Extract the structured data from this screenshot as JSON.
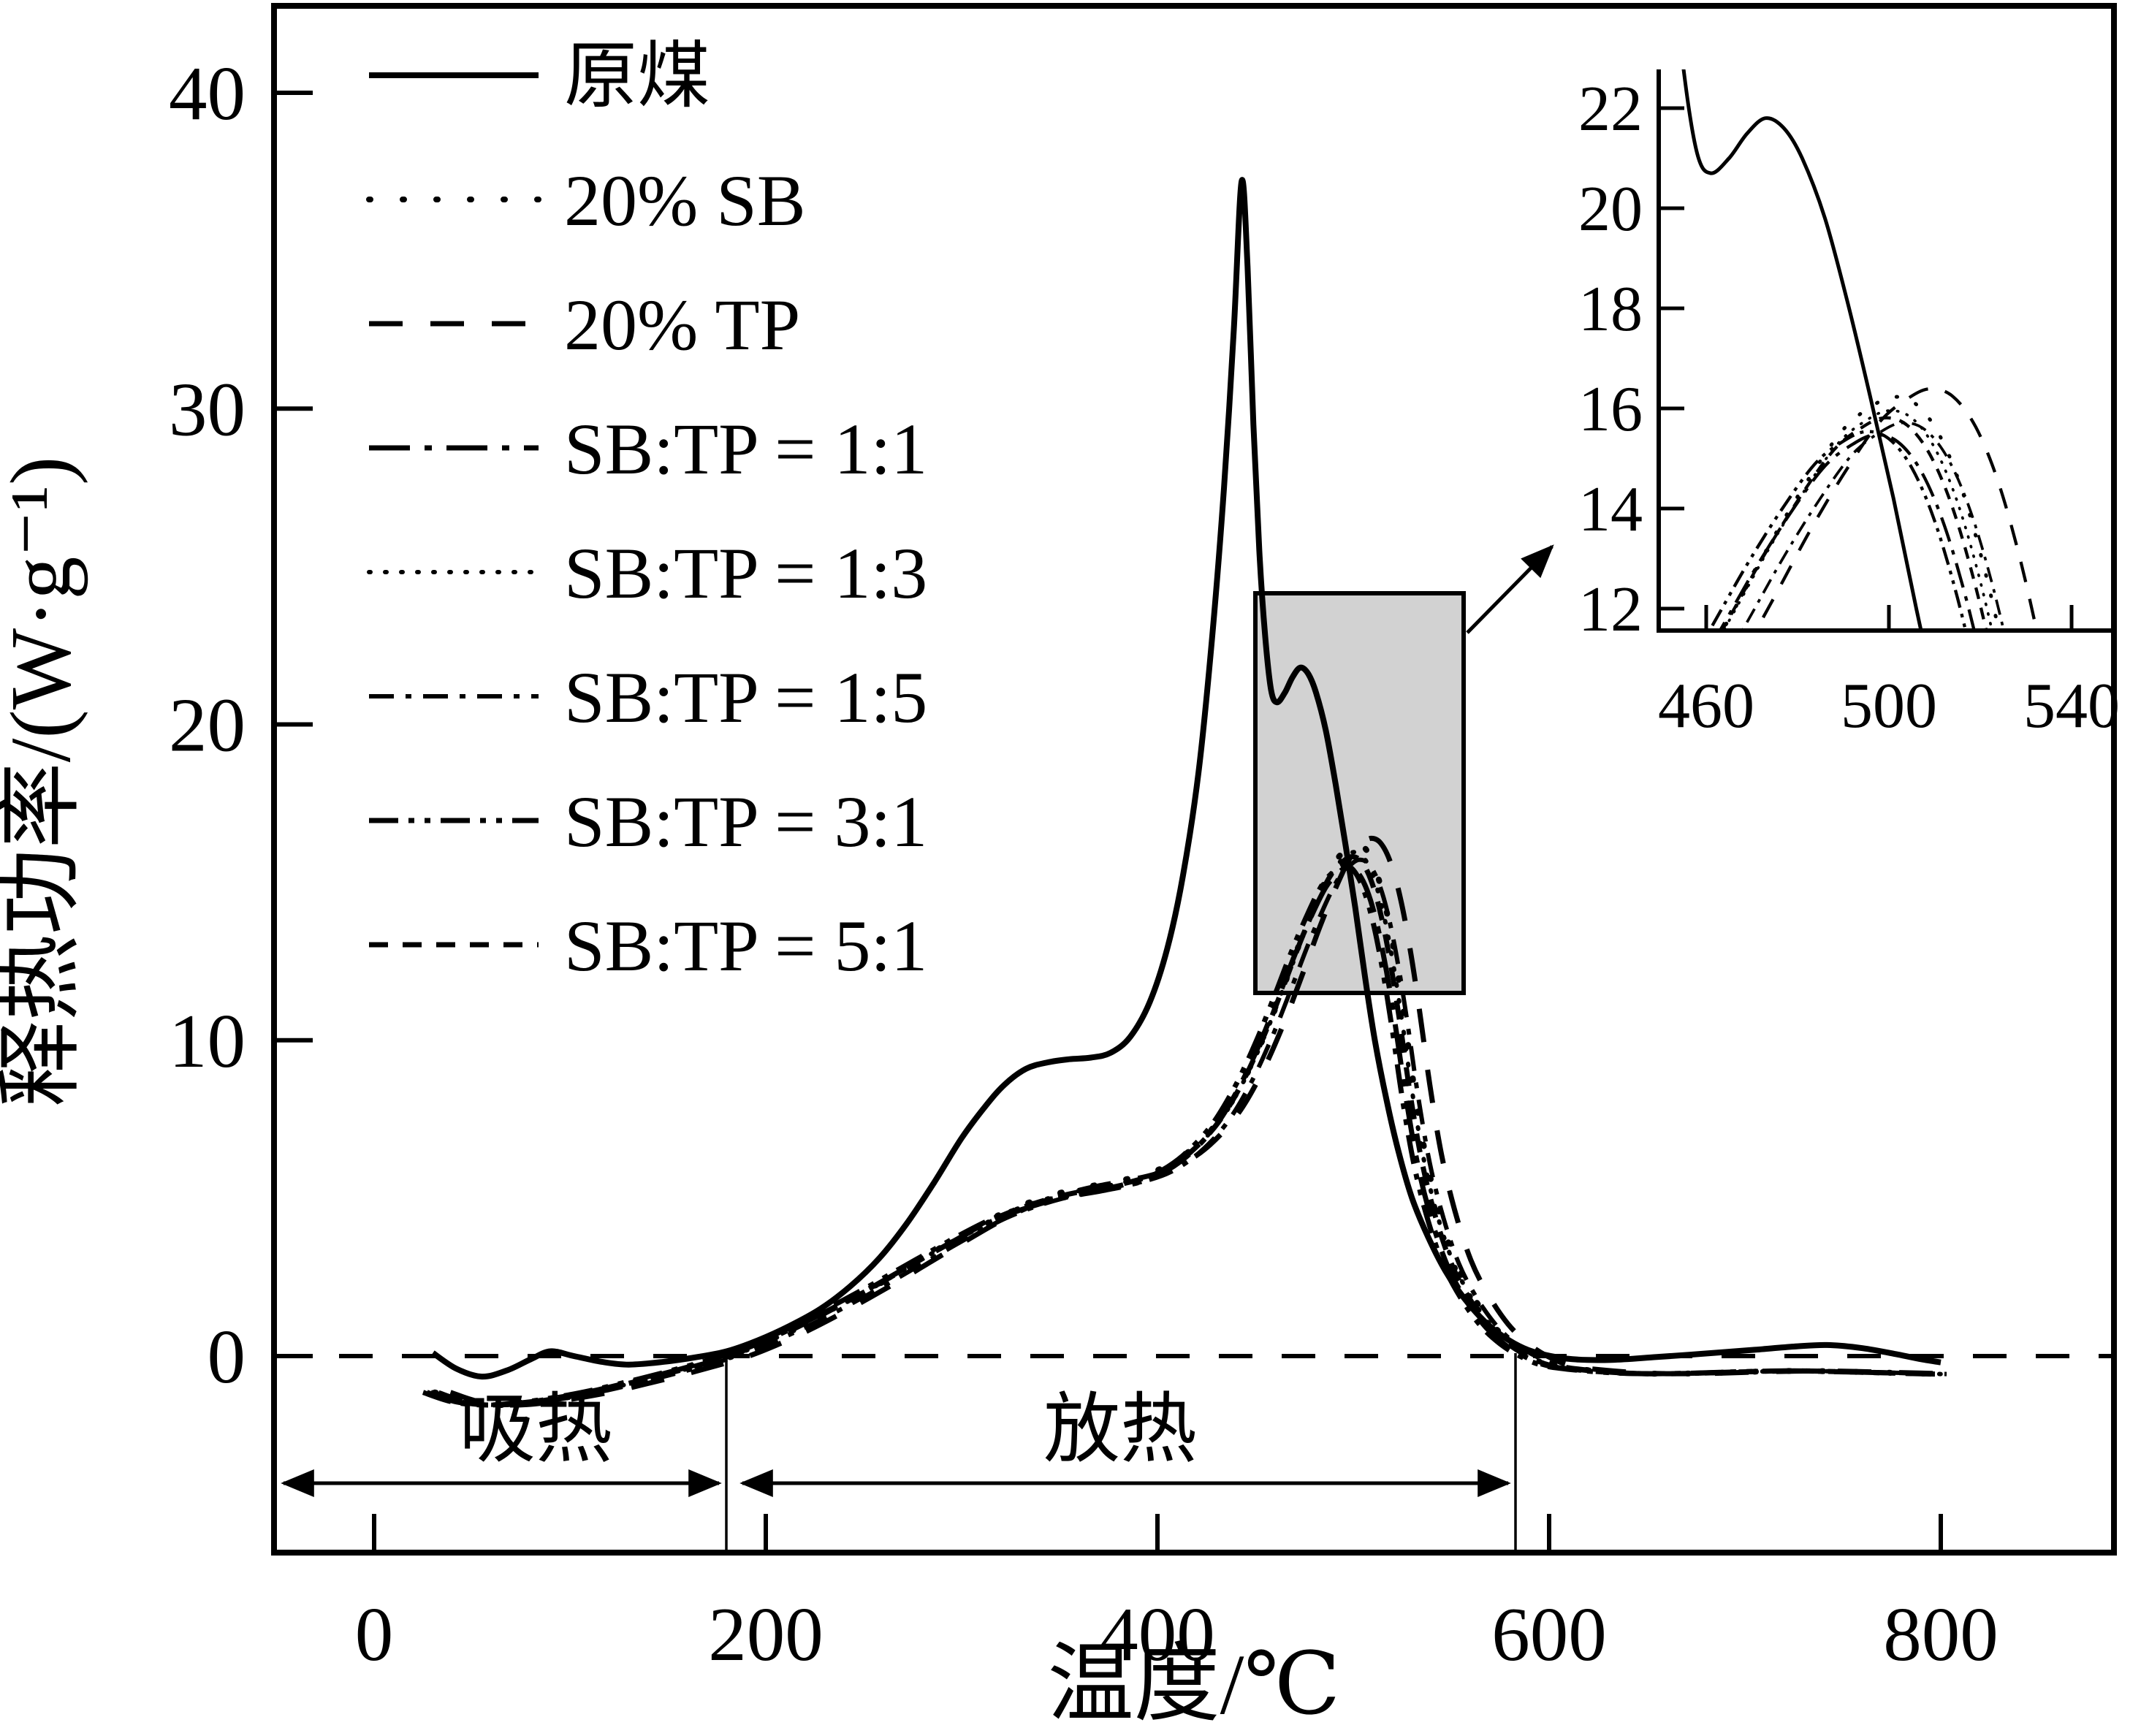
{
  "figure": {
    "background": "#ffffff",
    "ink_color": "#000000",
    "zoom_box_fill": "#d2d2d2"
  },
  "axes": {
    "x_label": "温度/℃",
    "y_label": "释热功率/(W·g⁻¹)",
    "x_tick_labels": [
      "0",
      "200",
      "400",
      "600",
      "800"
    ],
    "y_tick_labels": [
      "0",
      "10",
      "20",
      "30",
      "40"
    ]
  },
  "annotations": {
    "endothermic": "吸热",
    "exothermic": "放热"
  },
  "legend": {
    "items": [
      {
        "label": "原煤",
        "style": "solid"
      },
      {
        "label": "20% SB",
        "style": "dot"
      },
      {
        "label": "20% TP",
        "style": "dash"
      },
      {
        "label": "SB:TP = 1:1",
        "style": "dashdot"
      },
      {
        "label": "SB:TP = 1:3",
        "style": "finedot"
      },
      {
        "label": "SB:TP = 1:5",
        "style": "dashdot2"
      },
      {
        "label": "SB:TP = 3:1",
        "style": "dashdotdot"
      },
      {
        "label": "SB:TP = 5:1",
        "style": "densedash"
      }
    ]
  },
  "inset": {
    "x_tick_labels": [
      "460",
      "500",
      "540"
    ],
    "y_tick_labels": [
      "22",
      "20",
      "18",
      "16",
      "14",
      "12"
    ]
  },
  "chart_data": {
    "type": "line",
    "title": "",
    "xlabel": "温度/℃",
    "ylabel": "释热功率/(W·g⁻¹)",
    "grid": false,
    "legend_position": "upper-left",
    "xlim": [
      -51,
      888
    ],
    "ylim": [
      -6.2,
      42.8
    ],
    "x_ticks": [
      0,
      200,
      400,
      600,
      800
    ],
    "y_ticks": [
      0,
      10,
      20,
      30,
      40
    ],
    "zero_reference_line": 0,
    "regions": {
      "endothermic": {
        "label": "吸热",
        "from_x": -51,
        "to_x": 180
      },
      "exothermic": {
        "label": "放热",
        "from_x": 180,
        "to_x": 583
      }
    },
    "zoom_region": {
      "x_from": 450,
      "x_to": 556,
      "y_from": 11.5,
      "y_to": 24.2
    },
    "inset_axes": {
      "xlim": [
        449.6,
        548.8
      ],
      "ylim": [
        11.56,
        22.78
      ],
      "x_ticks": [
        460,
        500,
        540
      ],
      "y_ticks": [
        12,
        14,
        16,
        18,
        20,
        22
      ]
    },
    "raw_coal_points": [
      [
        30,
        0.1
      ],
      [
        42,
        -0.4
      ],
      [
        55,
        -0.65
      ],
      [
        68,
        -0.45
      ],
      [
        80,
        -0.1
      ],
      [
        90,
        0.15
      ],
      [
        102,
        0.0
      ],
      [
        116,
        -0.18
      ],
      [
        130,
        -0.27
      ],
      [
        148,
        -0.18
      ],
      [
        165,
        -0.03
      ],
      [
        180,
        0.15
      ],
      [
        196,
        0.5
      ],
      [
        212,
        0.95
      ],
      [
        228,
        1.5
      ],
      [
        243,
        2.2
      ],
      [
        258,
        3.1
      ],
      [
        272,
        4.2
      ],
      [
        286,
        5.5
      ],
      [
        300,
        6.9
      ],
      [
        312,
        7.9
      ],
      [
        322,
        8.6
      ],
      [
        333,
        9.1
      ],
      [
        344,
        9.3
      ],
      [
        355,
        9.4
      ],
      [
        366,
        9.45
      ],
      [
        376,
        9.6
      ],
      [
        386,
        10.1
      ],
      [
        396,
        11.2
      ],
      [
        405,
        12.9
      ],
      [
        413,
        15.2
      ],
      [
        421,
        18.5
      ],
      [
        428,
        22.8
      ],
      [
        434,
        27.5
      ],
      [
        439,
        32.5
      ],
      [
        443,
        37.2
      ],
      [
        446,
        34.5
      ],
      [
        449,
        29.5
      ],
      [
        452,
        25.5
      ],
      [
        455,
        22.8
      ],
      [
        458,
        21.1
      ],
      [
        461,
        20.7
      ],
      [
        465,
        21.0
      ],
      [
        469,
        21.5
      ],
      [
        473,
        21.8
      ],
      [
        477,
        21.6
      ],
      [
        481,
        21.0
      ],
      [
        486,
        19.8
      ],
      [
        491,
        18.1
      ],
      [
        496,
        16.2
      ],
      [
        501,
        14.2
      ],
      [
        506,
        12.0
      ],
      [
        511,
        10.0
      ],
      [
        517,
        8.1
      ],
      [
        523,
        6.5
      ],
      [
        530,
        5.0
      ],
      [
        538,
        3.8
      ],
      [
        547,
        2.7
      ],
      [
        557,
        1.8
      ],
      [
        567,
        1.1
      ],
      [
        577,
        0.6
      ],
      [
        587,
        0.25
      ],
      [
        597,
        0.05
      ],
      [
        612,
        -0.1
      ],
      [
        632,
        -0.12
      ],
      [
        655,
        -0.03
      ],
      [
        680,
        0.08
      ],
      [
        705,
        0.2
      ],
      [
        725,
        0.3
      ],
      [
        742,
        0.35
      ],
      [
        760,
        0.25
      ],
      [
        778,
        0.05
      ],
      [
        790,
        -0.1
      ],
      [
        800,
        -0.2
      ]
    ],
    "blend_base_points": [
      [
        30,
        -1.15
      ],
      [
        45,
        -1.45
      ],
      [
        62,
        -1.55
      ],
      [
        80,
        -1.47
      ],
      [
        98,
        -1.3
      ],
      [
        115,
        -1.1
      ],
      [
        132,
        -0.85
      ],
      [
        150,
        -0.57
      ],
      [
        166,
        -0.3
      ],
      [
        180,
        -0.05
      ],
      [
        196,
        0.33
      ],
      [
        212,
        0.78
      ],
      [
        228,
        1.28
      ],
      [
        244,
        1.82
      ],
      [
        260,
        2.38
      ],
      [
        276,
        2.97
      ],
      [
        292,
        3.55
      ],
      [
        306,
        4.05
      ],
      [
        320,
        4.5
      ],
      [
        334,
        4.85
      ],
      [
        348,
        5.12
      ],
      [
        362,
        5.32
      ],
      [
        376,
        5.48
      ],
      [
        390,
        5.68
      ],
      [
        404,
        6.0
      ],
      [
        418,
        6.6
      ],
      [
        432,
        7.55
      ],
      [
        444,
        8.8
      ],
      [
        455,
        10.3
      ],
      [
        465,
        11.9
      ],
      [
        474,
        13.4
      ],
      [
        482,
        14.6
      ],
      [
        489,
        15.5
      ],
      [
        495,
        15.95
      ],
      [
        500,
        16.15
      ],
      [
        505,
        16.0
      ],
      [
        510,
        15.4
      ],
      [
        515,
        14.3
      ],
      [
        520,
        12.7
      ],
      [
        525,
        10.7
      ],
      [
        530,
        8.5
      ],
      [
        536,
        6.3
      ],
      [
        543,
        4.5
      ],
      [
        551,
        3.0
      ],
      [
        560,
        1.9
      ],
      [
        570,
        1.0
      ],
      [
        580,
        0.4
      ],
      [
        590,
        0.0
      ],
      [
        602,
        -0.3
      ],
      [
        620,
        -0.45
      ],
      [
        645,
        -0.55
      ],
      [
        672,
        -0.55
      ],
      [
        700,
        -0.5
      ],
      [
        728,
        -0.47
      ],
      [
        755,
        -0.5
      ],
      [
        780,
        -0.54
      ],
      [
        800,
        -0.57
      ]
    ],
    "series": [
      {
        "name": "原煤",
        "style": "solid",
        "source": "raw_coal",
        "peak": [
          443,
          37.2
        ]
      },
      {
        "name": "20% SB",
        "style": "dot",
        "source": "blend",
        "dx": 1,
        "k": 1.005,
        "peak": [
          501,
          16.23
        ]
      },
      {
        "name": "20% TP",
        "style": "dash",
        "source": "blend",
        "dx": 9,
        "k": 1.015,
        "peak": [
          509,
          16.39
        ]
      },
      {
        "name": "SB:TP = 1:1",
        "style": "dashdot",
        "source": "blend",
        "dx": -3,
        "k": 0.958,
        "peak": [
          497,
          15.47
        ]
      },
      {
        "name": "SB:TP = 1:3",
        "style": "finedot",
        "source": "blend",
        "dx": 0,
        "k": 0.988,
        "peak": [
          500,
          15.96
        ]
      },
      {
        "name": "SB:TP = 1:5",
        "style": "dashdot2",
        "source": "blend",
        "dx": 3,
        "k": 0.973,
        "peak": [
          503,
          15.71
        ]
      },
      {
        "name": "SB:TP = 3:1",
        "style": "dashdotdot",
        "source": "blend",
        "dx": -5,
        "k": 0.962,
        "peak": [
          495,
          15.54
        ]
      },
      {
        "name": "SB:TP = 5:1",
        "style": "densedash",
        "source": "blend",
        "dx": -1,
        "k": 0.979,
        "peak": [
          499,
          15.81
        ]
      }
    ]
  }
}
